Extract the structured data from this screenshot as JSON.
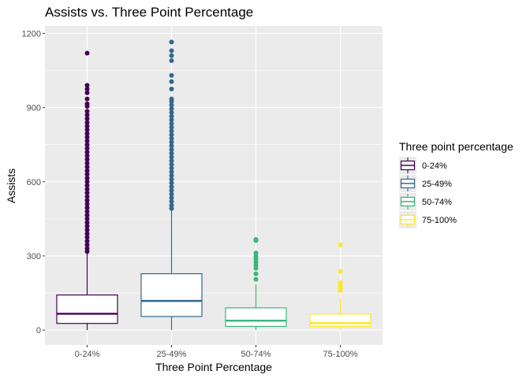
{
  "chart_data": {
    "type": "boxplot",
    "title": "Assists vs. Three Point Percentage",
    "xlabel": "Three Point Percentage",
    "ylabel": "Assists",
    "ylim": [
      -60,
      1230
    ],
    "yticks": [
      0,
      300,
      600,
      900,
      1200
    ],
    "grid": true,
    "legend": {
      "title": "Three point percentage",
      "position": "right"
    },
    "categories": [
      "0-24%",
      "25-49%",
      "50-74%",
      "75-100%"
    ],
    "colors": [
      "#440154",
      "#31688e",
      "#35b779",
      "#fde725"
    ],
    "boxes": [
      {
        "category": "0-24%",
        "whisker_low": 0,
        "q1": 27,
        "median": 66,
        "q3": 142,
        "whisker_high": 312,
        "outliers": [
          318,
          330,
          345,
          360,
          375,
          390,
          405,
          420,
          435,
          450,
          465,
          480,
          495,
          510,
          525,
          540,
          555,
          570,
          585,
          600,
          615,
          630,
          645,
          660,
          675,
          690,
          705,
          720,
          735,
          750,
          765,
          780,
          795,
          810,
          825,
          840,
          855,
          870,
          885,
          905,
          915,
          935,
          960,
          975,
          990,
          1120
        ]
      },
      {
        "category": "25-49%",
        "whisker_low": 0,
        "q1": 55,
        "median": 118,
        "q3": 228,
        "whisker_high": 488,
        "outliers": [
          492,
          505,
          520,
          535,
          550,
          565,
          580,
          595,
          610,
          625,
          640,
          655,
          670,
          685,
          700,
          715,
          730,
          745,
          760,
          775,
          790,
          805,
          820,
          835,
          850,
          865,
          880,
          895,
          910,
          925,
          935,
          975,
          1005,
          1030,
          1090,
          1110,
          1130,
          1165
        ]
      },
      {
        "category": "50-74%",
        "whisker_low": 0,
        "q1": 15,
        "median": 38,
        "q3": 90,
        "whisker_high": 185,
        "outliers": [
          205,
          228,
          250,
          262,
          275,
          287,
          298,
          312,
          362,
          367
        ]
      },
      {
        "category": "75-100%",
        "whisker_low": 0,
        "q1": 15,
        "median": 28,
        "q3": 65,
        "whisker_high": 128,
        "outliers": [
          160,
          170,
          178,
          185,
          192,
          237,
          345
        ]
      }
    ]
  }
}
